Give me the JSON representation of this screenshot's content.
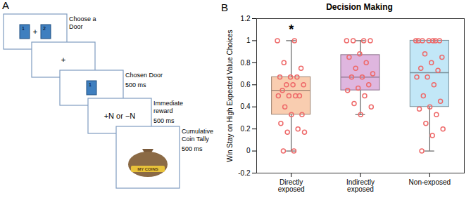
{
  "diagram": {
    "panel_label": "A",
    "screens": [
      {
        "kind": "doors",
        "labels": [
          "1",
          "2"
        ],
        "fixation": "+",
        "caption": "Choose a Door"
      },
      {
        "kind": "fixation",
        "labels": [
          "+"
        ]
      },
      {
        "kind": "doors",
        "labels": [
          "1"
        ],
        "caption": "Chosen Door",
        "duration": "500 ms"
      },
      {
        "kind": "text",
        "labels": [
          "+N or −N"
        ],
        "caption": "Immediate reward",
        "duration": "500 ms"
      },
      {
        "kind": "bag",
        "labels": [
          "MY COINS"
        ],
        "caption": "Cumulative Coin Tally",
        "duration": "500 ms"
      }
    ]
  },
  "chart_data": {
    "type": "box",
    "panel_label": "B",
    "title": "Decision Making",
    "y_label": "Win Stay on High Expected Value Choices",
    "categories": [
      "Directly exposed",
      "Indirectly exposed",
      "Non-exposed"
    ],
    "box": [
      {
        "whisker_low": 0,
        "q1": 0.33,
        "median": 0.55,
        "q3": 0.67,
        "whisker_high": 1
      },
      {
        "whisker_low": 0.33,
        "q1": 0.55,
        "median": 0.67,
        "q3": 0.87,
        "whisker_high": 1
      },
      {
        "whisker_low": 0,
        "q1": 0.4,
        "median": 0.71,
        "q3": 1,
        "whisker_high": 1
      }
    ],
    "points": [
      [
        1,
        1,
        0.8,
        0.75,
        0.67,
        0.67,
        0.67,
        0.6,
        0.6,
        0.6,
        0.55,
        0.5,
        0.5,
        0.5,
        0.5,
        0.4,
        0.33,
        0.33,
        0.25,
        0.2,
        0.17,
        0.17,
        0,
        0
      ],
      [
        1,
        1,
        1,
        1,
        0.88,
        0.85,
        0.8,
        0.75,
        0.7,
        0.67,
        0.67,
        0.6,
        0.57,
        0.55,
        0.5,
        0.43,
        0.4,
        0.33
      ],
      [
        1,
        1,
        1,
        1,
        1,
        1,
        1,
        0.88,
        0.85,
        0.8,
        0.75,
        0.73,
        0.67,
        0.67,
        0.6,
        0.5,
        0.45,
        0.4,
        0.38,
        0.33,
        0.25,
        0.2,
        0.14,
        0
      ]
    ],
    "colors": [
      "#f9cdb0",
      "#dfb6df",
      "#c2e7f7"
    ],
    "color": "#ee6a6a",
    "marker": "circle",
    "annotations": [
      {
        "text": "*",
        "category": "Directly exposed",
        "y": 1.1
      }
    ],
    "ylim": [
      -0.2,
      1.2
    ],
    "yticks": [
      -0.2,
      0,
      0.2,
      0.4,
      0.6,
      0.8,
      1,
      1.2
    ],
    "grid": false
  }
}
